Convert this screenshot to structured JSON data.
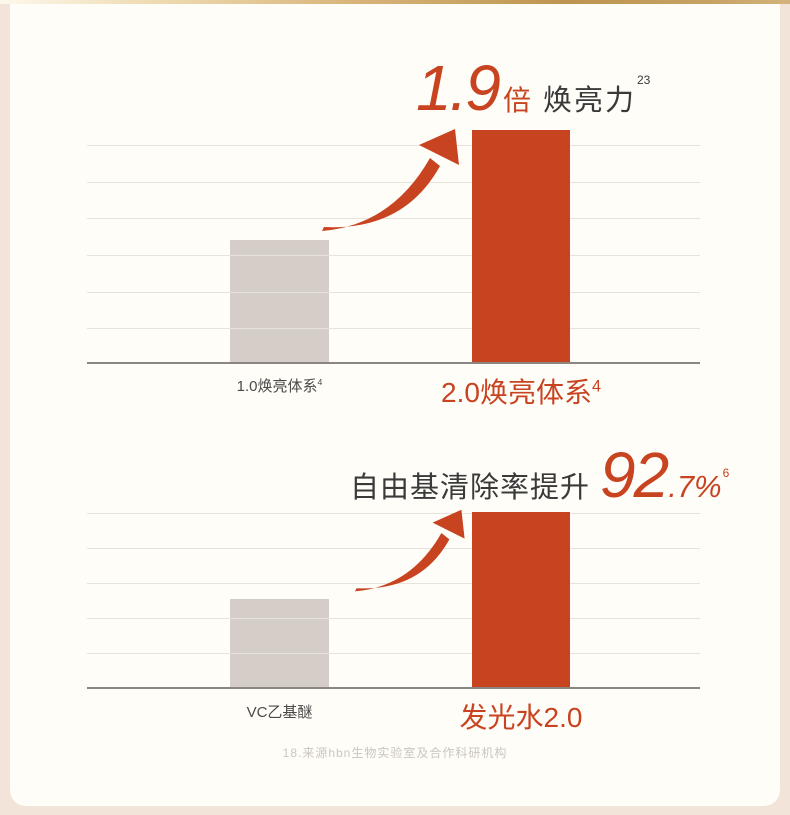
{
  "theme": {
    "accent_orange": "#c8431f",
    "bar_gray": "#d5cdc8",
    "text_dark": "#3a3a3a",
    "card_background": "#fffdf8",
    "outer_background": "#f2e4d8",
    "gold_divider": "#bd9551",
    "gridline_color": "#e7e2dc",
    "axis_color": "#8b8680"
  },
  "chart1": {
    "headline": {
      "value": "1.9",
      "unit": "倍",
      "text": "焕亮力",
      "superscript": "23"
    },
    "labels": [
      {
        "text": "1.0焕亮体系",
        "superscript": "4"
      },
      {
        "text": "2.0焕亮体系",
        "superscript": "4"
      }
    ]
  },
  "chart2": {
    "headline": {
      "prefix": "自由基清除率提升",
      "value": "92",
      "decimal": ".7%",
      "superscript": "6"
    },
    "labels": [
      {
        "text": "VC乙基醚"
      },
      {
        "text": "发光水2.0"
      }
    ]
  },
  "footer": {
    "source": "18.来源hbn生物实验室及合作科研机构"
  },
  "chart_data": [
    {
      "type": "bar",
      "title": "1.9倍 焕亮力(23)",
      "categories": [
        "1.0焕亮体系(4)",
        "2.0焕亮体系(4)"
      ],
      "values": [
        1.0,
        1.9
      ],
      "ylim": [
        0,
        1.9
      ],
      "bar_colors": [
        "#d5cdc8",
        "#c8431f"
      ],
      "grid": "horizontal",
      "legend": "none",
      "annotations": [
        "curved growth arrow from bar 1 to bar 2"
      ]
    },
    {
      "type": "bar",
      "title": "自由基清除率提升 92.7%(6)",
      "categories": [
        "VC乙基醚",
        "发光水2.0"
      ],
      "values": [
        47,
        92.7
      ],
      "ylim": [
        0,
        92.7
      ],
      "bar_colors": [
        "#d5cdc8",
        "#c8431f"
      ],
      "grid": "horizontal",
      "legend": "none",
      "annotations": [
        "curved growth arrow from bar 1 to bar 2"
      ]
    }
  ]
}
